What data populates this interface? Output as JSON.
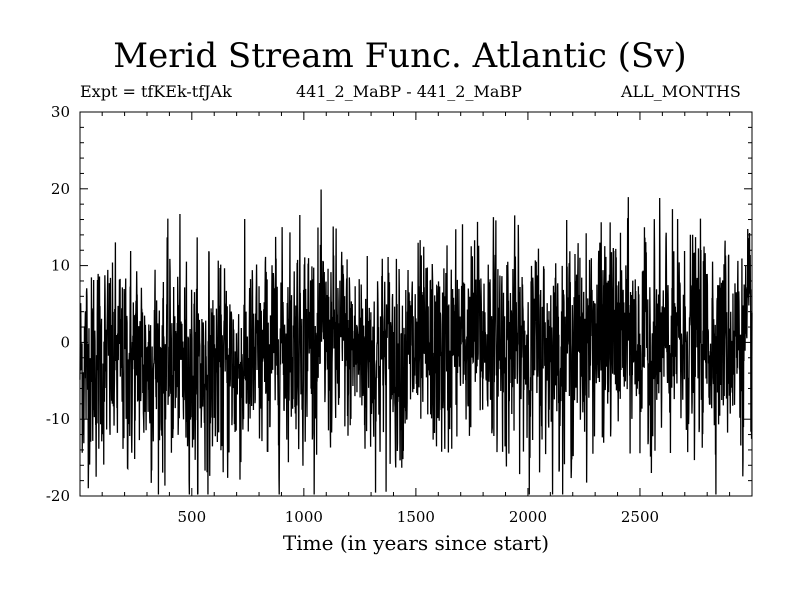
{
  "chart_data": {
    "type": "line",
    "title": "Merid Stream Func. Atlantic (Sv)",
    "subtitle_left": "Expt = tfKEk-tfJAk",
    "subtitle_center": "441_2_MaBP - 441_2_MaBP",
    "subtitle_right": "ALL_MONTHS",
    "xlabel": "Time (in years since start)",
    "ylabel": "",
    "xlim": [
      1,
      3000
    ],
    "ylim": [
      -20,
      30
    ],
    "xticks": [
      500,
      1000,
      1500,
      2000,
      2500
    ],
    "yticks": [
      -20,
      -10,
      0,
      10,
      20,
      30
    ],
    "series_color": "#000000",
    "series": [
      {
        "values_note_free": true,
        "keyframes": [
          {
            "x": 1,
            "y": -3
          },
          {
            "x": 300,
            "y": -2.5
          },
          {
            "x": 600,
            "y": -3.5
          },
          {
            "x": 800,
            "y": -3
          },
          {
            "x": 900,
            "y": 0
          },
          {
            "x": 1000,
            "y": 1
          },
          {
            "x": 1200,
            "y": -1
          },
          {
            "x": 1400,
            "y": -1.5
          },
          {
            "x": 1600,
            "y": -2
          },
          {
            "x": 1700,
            "y": 0
          },
          {
            "x": 1800,
            "y": 1
          },
          {
            "x": 2000,
            "y": -1
          },
          {
            "x": 2200,
            "y": 0
          },
          {
            "x": 2400,
            "y": 1
          },
          {
            "x": 2600,
            "y": -1
          },
          {
            "x": 2800,
            "y": 1
          },
          {
            "x": 3000,
            "y": 0
          }
        ],
        "spread": 6
      }
    ]
  }
}
